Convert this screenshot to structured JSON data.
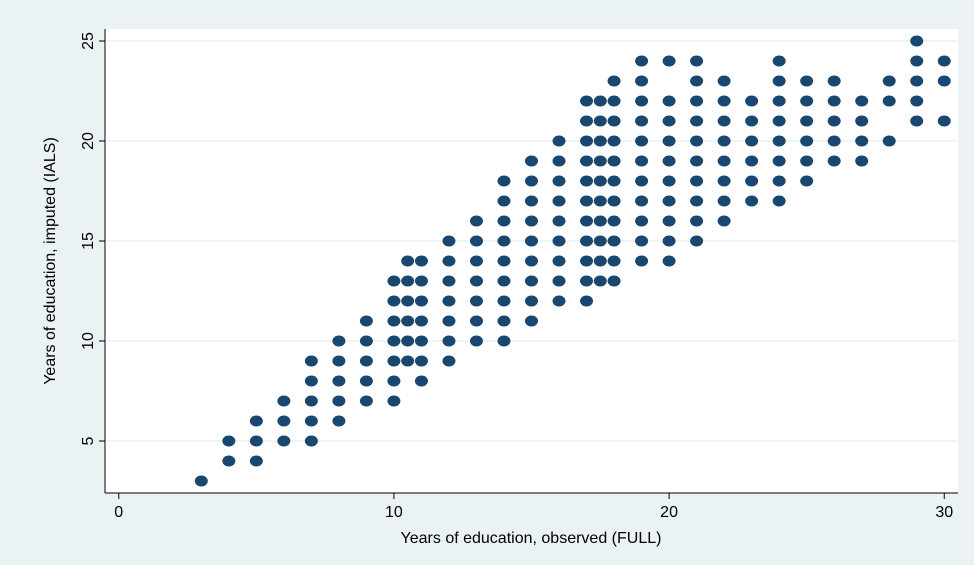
{
  "chart_data": {
    "type": "scatter",
    "title": "",
    "xlabel": "Years of education, observed (FULL)",
    "ylabel": "Years of education, imputed (IALS)",
    "xlim": [
      -0.5,
      30.5
    ],
    "ylim": [
      2.4,
      25.6
    ],
    "x_ticks": [
      0,
      10,
      20,
      30
    ],
    "y_ticks": [
      5,
      10,
      15,
      20,
      25
    ],
    "grid": "horizontal",
    "legend": "none",
    "colors": {
      "background": "#eaf2f3",
      "plot_bg": "#ffffff",
      "marker": "#1a476f",
      "grid": "#eaf2f3"
    },
    "columns": [
      {
        "x": 3,
        "y": [
          3
        ]
      },
      {
        "x": 4,
        "y": [
          4,
          5
        ]
      },
      {
        "x": 5,
        "y": [
          4,
          5,
          6
        ]
      },
      {
        "x": 6,
        "y": [
          5,
          6,
          7
        ]
      },
      {
        "x": 7,
        "y": [
          5,
          6,
          7,
          8,
          9
        ]
      },
      {
        "x": 8,
        "y": [
          6,
          7,
          8,
          9,
          10
        ]
      },
      {
        "x": 9,
        "y": [
          7,
          8,
          9,
          10,
          11
        ]
      },
      {
        "x": 10,
        "y": [
          7,
          8,
          9,
          10,
          11,
          12,
          13
        ]
      },
      {
        "x": 10.5,
        "y": [
          9,
          10,
          11,
          12,
          13,
          14
        ]
      },
      {
        "x": 11,
        "y": [
          8,
          9,
          10,
          11,
          12,
          13,
          14
        ]
      },
      {
        "x": 12,
        "y": [
          9,
          10,
          11,
          12,
          13,
          14,
          15
        ]
      },
      {
        "x": 13,
        "y": [
          10,
          11,
          12,
          13,
          14,
          15,
          16
        ]
      },
      {
        "x": 14,
        "y": [
          10,
          11,
          12,
          13,
          14,
          15,
          16,
          17,
          18
        ]
      },
      {
        "x": 15,
        "y": [
          11,
          12,
          13,
          14,
          15,
          16,
          17,
          18,
          19
        ]
      },
      {
        "x": 16,
        "y": [
          12,
          13,
          14,
          15,
          16,
          17,
          18,
          19,
          20
        ]
      },
      {
        "x": 17,
        "y": [
          12,
          13,
          14,
          15,
          16,
          17,
          18,
          19,
          20,
          21,
          22
        ]
      },
      {
        "x": 17.5,
        "y": [
          13,
          14,
          15,
          16,
          17,
          18,
          19,
          20,
          21,
          22
        ]
      },
      {
        "x": 18,
        "y": [
          13,
          14,
          15,
          16,
          17,
          18,
          19,
          20,
          21,
          22,
          23
        ]
      },
      {
        "x": 19,
        "y": [
          14,
          15,
          16,
          17,
          18,
          19,
          20,
          21,
          22,
          23,
          24
        ]
      },
      {
        "x": 20,
        "y": [
          14,
          15,
          16,
          17,
          18,
          19,
          20,
          21,
          22,
          24
        ]
      },
      {
        "x": 21,
        "y": [
          15,
          16,
          17,
          18,
          19,
          20,
          21,
          22,
          23,
          24
        ]
      },
      {
        "x": 22,
        "y": [
          16,
          17,
          18,
          19,
          20,
          21,
          22,
          23
        ]
      },
      {
        "x": 23,
        "y": [
          17,
          18,
          19,
          20,
          21,
          22
        ]
      },
      {
        "x": 24,
        "y": [
          17,
          18,
          19,
          20,
          21,
          22,
          23,
          24
        ]
      },
      {
        "x": 25,
        "y": [
          18,
          19,
          20,
          21,
          22,
          23
        ]
      },
      {
        "x": 26,
        "y": [
          19,
          20,
          21,
          22,
          23
        ]
      },
      {
        "x": 27,
        "y": [
          19,
          20,
          21,
          22
        ]
      },
      {
        "x": 28,
        "y": [
          20,
          22,
          23
        ]
      },
      {
        "x": 29,
        "y": [
          21,
          22,
          23,
          24,
          25
        ]
      },
      {
        "x": 30,
        "y": [
          21,
          23,
          24
        ]
      }
    ]
  }
}
